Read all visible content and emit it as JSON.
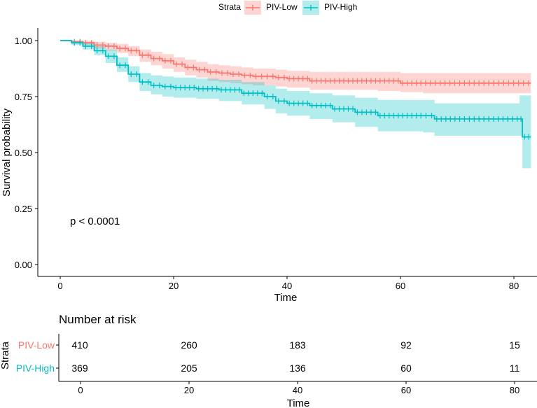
{
  "chart_data": [
    {
      "type": "line",
      "subtype": "kaplan-meier",
      "title": "",
      "xlabel": "Time",
      "ylabel": "Survival probability",
      "xlim": [
        -5,
        83
      ],
      "ylim": [
        -0.05,
        1.05
      ],
      "x_ticks": [
        0,
        20,
        40,
        60,
        80
      ],
      "y_ticks": [
        0.0,
        0.25,
        0.5,
        0.75,
        1.0
      ],
      "y_tick_labels": [
        "0.00",
        "0.25",
        "0.50",
        "0.75",
        "1.00"
      ],
      "grid": false,
      "legend": {
        "title": "Strata",
        "position": "top"
      },
      "annotation": "p < 0.0001",
      "annotation_at": {
        "x": 2,
        "y": 0.2
      },
      "series": [
        {
          "name": "PIV-Low",
          "color": "#F8766D",
          "band_color": "#F8766D",
          "x": [
            0,
            2,
            4,
            6,
            8,
            10,
            12,
            14,
            16,
            18,
            20,
            22,
            24,
            26,
            28,
            30,
            32,
            34,
            36,
            38,
            40,
            44,
            48,
            52,
            56,
            60,
            64,
            70,
            76,
            83
          ],
          "y": [
            1.0,
            0.995,
            0.99,
            0.98,
            0.975,
            0.965,
            0.955,
            0.935,
            0.92,
            0.91,
            0.895,
            0.88,
            0.87,
            0.86,
            0.855,
            0.85,
            0.845,
            0.84,
            0.84,
            0.835,
            0.83,
            0.82,
            0.82,
            0.82,
            0.82,
            0.81,
            0.81,
            0.81,
            0.81,
            0.81
          ],
          "lower": [
            1.0,
            0.99,
            0.98,
            0.965,
            0.955,
            0.945,
            0.93,
            0.905,
            0.89,
            0.875,
            0.86,
            0.845,
            0.835,
            0.82,
            0.815,
            0.81,
            0.805,
            0.8,
            0.8,
            0.795,
            0.79,
            0.78,
            0.78,
            0.78,
            0.775,
            0.77,
            0.765,
            0.765,
            0.765,
            0.765
          ],
          "upper": [
            1.0,
            1.0,
            1.0,
            0.995,
            0.99,
            0.985,
            0.975,
            0.96,
            0.95,
            0.94,
            0.925,
            0.915,
            0.905,
            0.895,
            0.89,
            0.885,
            0.88,
            0.875,
            0.875,
            0.87,
            0.865,
            0.86,
            0.86,
            0.86,
            0.86,
            0.855,
            0.855,
            0.855,
            0.855,
            0.855
          ]
        },
        {
          "name": "PIV-High",
          "color": "#00BFC4",
          "band_color": "#00BFC4",
          "x": [
            0,
            2,
            4,
            6,
            8,
            10,
            12,
            14,
            16,
            18,
            20,
            24,
            28,
            32,
            36,
            38,
            40,
            44,
            48,
            52,
            56,
            60,
            64,
            66,
            70,
            76,
            81,
            81.5,
            83
          ],
          "y": [
            1.0,
            0.99,
            0.975,
            0.955,
            0.93,
            0.89,
            0.85,
            0.815,
            0.8,
            0.795,
            0.79,
            0.785,
            0.78,
            0.765,
            0.75,
            0.73,
            0.72,
            0.71,
            0.695,
            0.68,
            0.665,
            0.665,
            0.665,
            0.65,
            0.65,
            0.65,
            0.65,
            0.57,
            0.57
          ],
          "lower": [
            1.0,
            0.98,
            0.96,
            0.935,
            0.9,
            0.86,
            0.815,
            0.775,
            0.76,
            0.75,
            0.745,
            0.74,
            0.73,
            0.715,
            0.695,
            0.675,
            0.665,
            0.65,
            0.635,
            0.615,
            0.595,
            0.595,
            0.59,
            0.575,
            0.575,
            0.575,
            0.575,
            0.43,
            0.43
          ],
          "upper": [
            1.0,
            1.0,
            0.99,
            0.975,
            0.96,
            0.925,
            0.885,
            0.855,
            0.845,
            0.84,
            0.835,
            0.83,
            0.825,
            0.815,
            0.8,
            0.785,
            0.775,
            0.765,
            0.755,
            0.745,
            0.735,
            0.735,
            0.735,
            0.72,
            0.72,
            0.72,
            0.755,
            0.755,
            0.755
          ]
        }
      ]
    },
    {
      "type": "table",
      "title": "Number at risk",
      "xlabel": "Time",
      "ylabel": "Strata",
      "x_ticks": [
        0,
        20,
        40,
        60,
        80
      ],
      "rows": [
        {
          "name": "PIV-Low",
          "color": "#F8766D",
          "values": [
            410,
            260,
            183,
            92,
            15
          ]
        },
        {
          "name": "PIV-High",
          "color": "#00BFC4",
          "values": [
            369,
            205,
            136,
            60,
            11
          ]
        }
      ]
    }
  ]
}
